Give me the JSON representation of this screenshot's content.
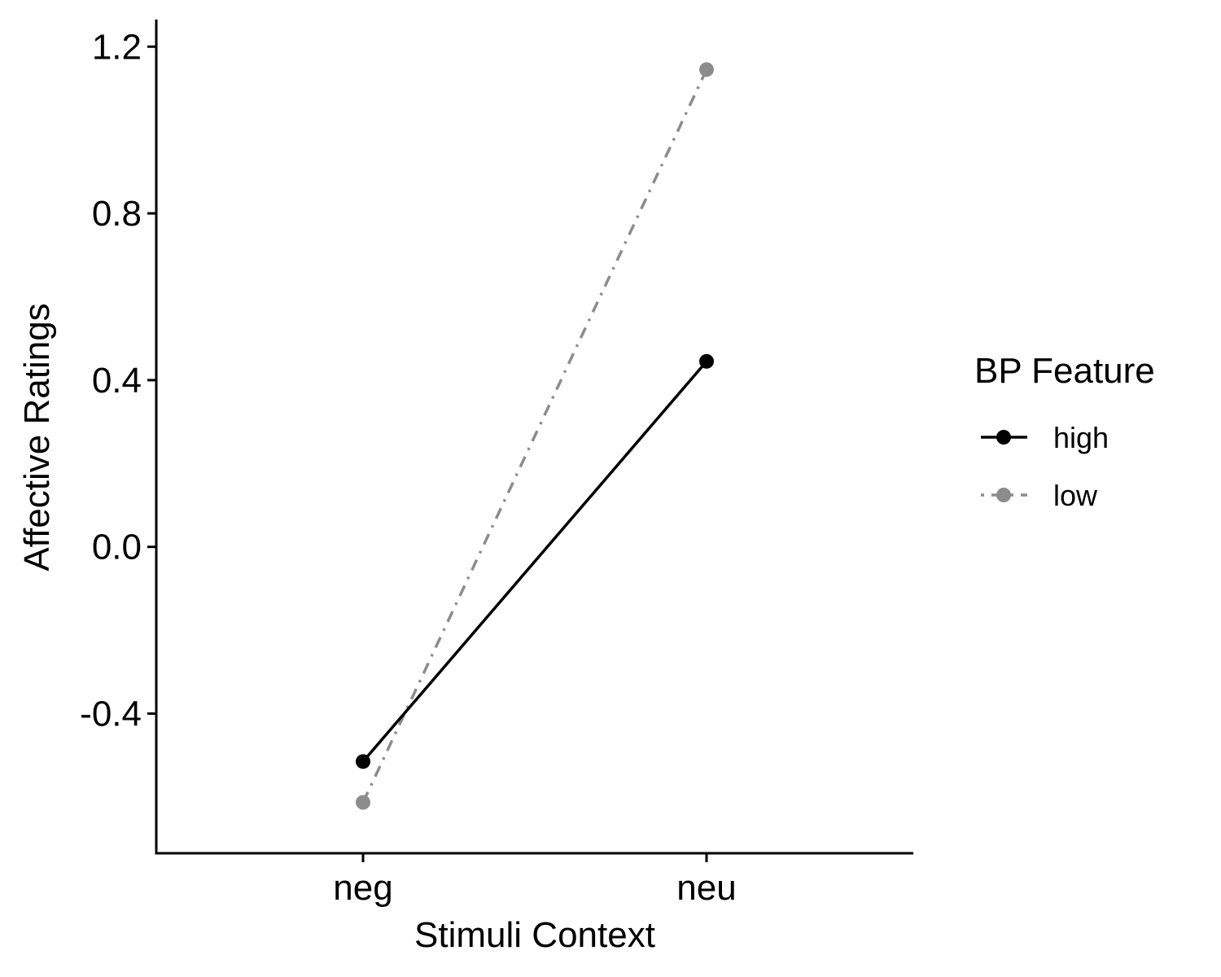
{
  "chart_data": {
    "type": "line",
    "title": "",
    "xlabel": "Stimuli Context",
    "ylabel": "Affective Ratings",
    "categories": [
      "neg",
      "neu"
    ],
    "ylim": [
      -0.735,
      1.265
    ],
    "yticks": [
      -0.4,
      0.0,
      0.4,
      0.8,
      1.2
    ],
    "ytick_labels": [
      "-0.4",
      "0.0",
      "0.4",
      "0.8",
      "1.2"
    ],
    "grid": false,
    "legend": {
      "title": "BP Feature",
      "position": "right"
    },
    "series": [
      {
        "name": "high",
        "values": [
          -0.515,
          0.445
        ],
        "color": "#000000",
        "line_style": "solid",
        "marker": "circle"
      },
      {
        "name": "low",
        "values": [
          -0.613,
          1.145
        ],
        "color": "#8c8c8c",
        "line_style": "dashdot",
        "marker": "circle"
      }
    ]
  }
}
